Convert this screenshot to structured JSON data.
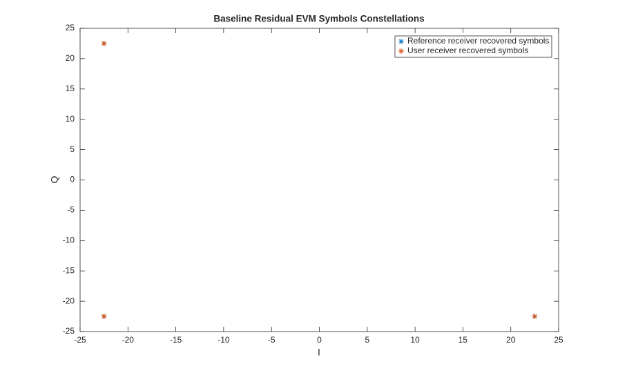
{
  "chart_data": {
    "type": "scatter",
    "title": "Baseline Residual EVM Symbols Constellations",
    "x_label": "I",
    "y_label": "Q",
    "series": [
      {
        "name": "Reference receiver recovered symbols",
        "color": "#0072BD",
        "x": [
          -22.5,
          -22.5,
          22.5
        ],
        "values": [
          22.5,
          -22.5,
          -22.5
        ]
      },
      {
        "name": "User receiver recovered symbols",
        "color": "#D95319",
        "x": [
          -22.5,
          -22.5,
          22.5
        ],
        "values": [
          22.5,
          -22.5,
          -22.5
        ]
      }
    ],
    "xlim": [
      -25,
      25
    ],
    "xticks": [
      -25,
      -20,
      -15,
      -10,
      -5,
      0,
      5,
      10,
      15,
      20,
      25
    ],
    "ylim": [
      -25,
      25
    ],
    "yticks": [
      -25,
      -20,
      -15,
      -10,
      -5,
      0,
      5,
      10,
      15,
      20,
      25
    ],
    "grid": false,
    "legend": "top-right"
  }
}
